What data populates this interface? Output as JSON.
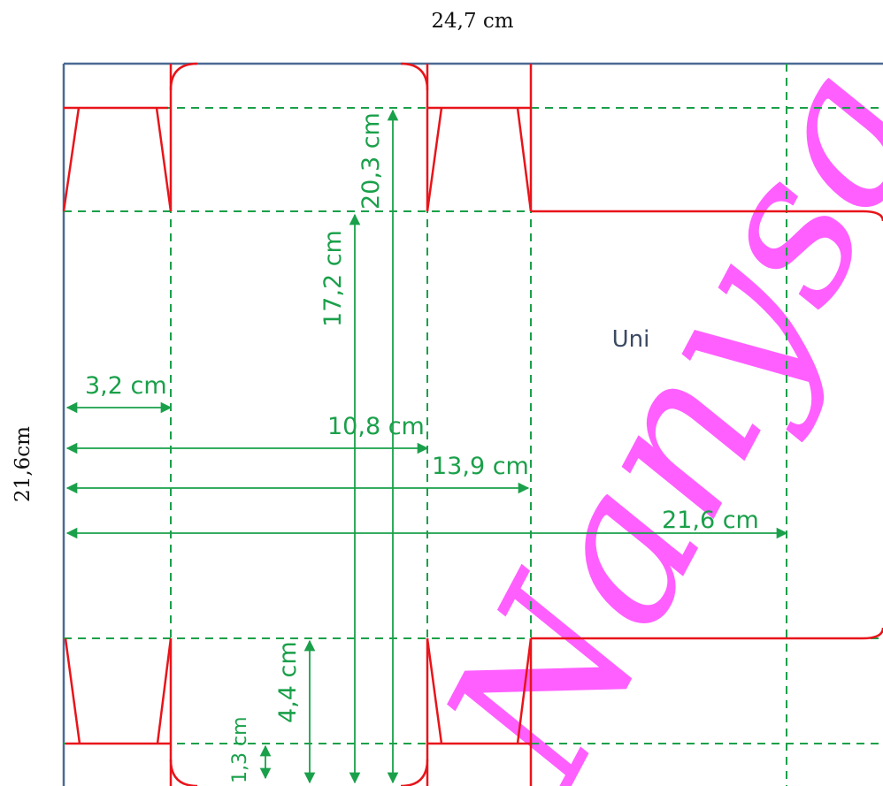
{
  "title_width": "24,7 cm",
  "title_height": "21,6cm",
  "panel_label": "Uni",
  "watermark": "Nanysa",
  "dimensions": {
    "d1": "3,2 cm",
    "d2": "10,8 cm",
    "d3": "13,9 cm",
    "d4": "21,6 cm",
    "d5": "17,2 cm",
    "d6": "20,3 cm",
    "d7": "4,4 cm",
    "d8": "1,3 cm"
  },
  "colors": {
    "cut_line": "#e8141a",
    "fold_line": "#1aa04a",
    "dimension": "#1aa04a",
    "border": "#4a6a95",
    "watermark": "#ff33ff",
    "panel_label": "#3b4a63"
  }
}
